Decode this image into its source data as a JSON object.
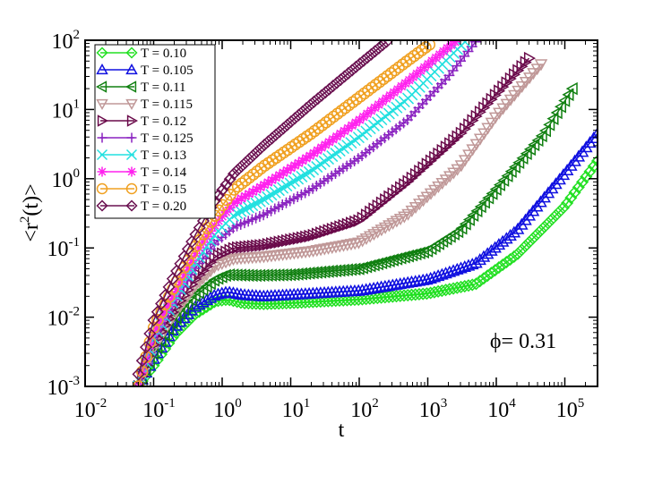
{
  "chart_data": {
    "type": "line",
    "xscale": "log",
    "yscale": "log",
    "xlim": [
      0.01,
      300000
    ],
    "ylim": [
      0.001,
      100
    ],
    "xlabel": "t",
    "ylabel": {
      "pre": "<r",
      "sup": "2",
      "post": "(t)>"
    },
    "x_ticks": [
      {
        "base": "10",
        "exp": "-2"
      },
      {
        "base": "10",
        "exp": "-1"
      },
      {
        "base": "10",
        "exp": "0"
      },
      {
        "base": "10",
        "exp": "1"
      },
      {
        "base": "10",
        "exp": "2"
      },
      {
        "base": "10",
        "exp": "3"
      },
      {
        "base": "10",
        "exp": "4"
      },
      {
        "base": "10",
        "exp": "5"
      }
    ],
    "y_ticks": [
      {
        "base": "10",
        "exp": "-3"
      },
      {
        "base": "10",
        "exp": "-2"
      },
      {
        "base": "10",
        "exp": "-1"
      },
      {
        "base": "10",
        "exp": "0"
      },
      {
        "base": "10",
        "exp": "1"
      },
      {
        "base": "10",
        "exp": "2"
      }
    ],
    "annotation": "ϕ= 0.31",
    "legend_position": "top-left",
    "series": [
      {
        "name": "T = 0.10",
        "color": "#22e022",
        "marker": "diamond",
        "t_max": 300000,
        "points": [
          [
            0.06,
            0.001
          ],
          [
            0.1,
            0.002
          ],
          [
            0.2,
            0.0055
          ],
          [
            0.4,
            0.011
          ],
          [
            0.8,
            0.017
          ],
          [
            1.2,
            0.018
          ],
          [
            2,
            0.016
          ],
          [
            4,
            0.0155
          ],
          [
            10,
            0.016
          ],
          [
            100,
            0.018
          ],
          [
            1000,
            0.022
          ],
          [
            5000,
            0.03
          ],
          [
            20000,
            0.08
          ],
          [
            100000,
            0.4
          ],
          [
            300000,
            1.8
          ]
        ]
      },
      {
        "name": "T = 0.105",
        "color": "#1010e0",
        "marker": "triangle-up",
        "t_max": 300000,
        "points": [
          [
            0.06,
            0.001
          ],
          [
            0.1,
            0.0025
          ],
          [
            0.2,
            0.007
          ],
          [
            0.4,
            0.014
          ],
          [
            0.8,
            0.021
          ],
          [
            1.2,
            0.023
          ],
          [
            2,
            0.021
          ],
          [
            4,
            0.02
          ],
          [
            10,
            0.021
          ],
          [
            100,
            0.024
          ],
          [
            1000,
            0.035
          ],
          [
            5000,
            0.06
          ],
          [
            20000,
            0.18
          ],
          [
            100000,
            1.2
          ],
          [
            300000,
            4.5
          ]
        ]
      },
      {
        "name": "T = 0.11",
        "color": "#118011",
        "marker": "triangle-left",
        "t_max": 130000,
        "points": [
          [
            0.06,
            0.001
          ],
          [
            0.1,
            0.003
          ],
          [
            0.2,
            0.009
          ],
          [
            0.4,
            0.02
          ],
          [
            0.8,
            0.035
          ],
          [
            1.2,
            0.041
          ],
          [
            3,
            0.04
          ],
          [
            10,
            0.041
          ],
          [
            100,
            0.05
          ],
          [
            1000,
            0.09
          ],
          [
            3000,
            0.18
          ],
          [
            10000,
            0.7
          ],
          [
            50000,
            4.5
          ],
          [
            130000,
            20
          ]
        ]
      },
      {
        "name": "T = 0.115",
        "color": "#c09898",
        "marker": "triangle-down",
        "t_max": 45000,
        "points": [
          [
            0.06,
            0.001
          ],
          [
            0.1,
            0.0035
          ],
          [
            0.2,
            0.011
          ],
          [
            0.4,
            0.028
          ],
          [
            0.8,
            0.055
          ],
          [
            1.5,
            0.07
          ],
          [
            4,
            0.075
          ],
          [
            20,
            0.09
          ],
          [
            100,
            0.12
          ],
          [
            500,
            0.3
          ],
          [
            3000,
            1.5
          ],
          [
            10000,
            8
          ],
          [
            45000,
            45
          ]
        ]
      },
      {
        "name": "T = 0.12",
        "color": "#6a0a4a",
        "marker": "triangle-right",
        "t_max": 30000,
        "points": [
          [
            0.06,
            0.001
          ],
          [
            0.1,
            0.004
          ],
          [
            0.2,
            0.013
          ],
          [
            0.4,
            0.035
          ],
          [
            0.8,
            0.075
          ],
          [
            1.5,
            0.1
          ],
          [
            4,
            0.11
          ],
          [
            20,
            0.15
          ],
          [
            100,
            0.25
          ],
          [
            500,
            0.9
          ],
          [
            3000,
            4.5
          ],
          [
            10000,
            17
          ],
          [
            30000,
            55
          ]
        ]
      },
      {
        "name": "T = 0.125",
        "color": "#8a22c0",
        "marker": "plus",
        "t_max": 5000,
        "points": [
          [
            0.06,
            0.001
          ],
          [
            0.1,
            0.0045
          ],
          [
            0.2,
            0.016
          ],
          [
            0.4,
            0.05
          ],
          [
            0.8,
            0.12
          ],
          [
            1.5,
            0.2
          ],
          [
            4,
            0.3
          ],
          [
            20,
            0.7
          ],
          [
            100,
            2
          ],
          [
            500,
            7
          ],
          [
            2000,
            30
          ],
          [
            5000,
            95
          ]
        ]
      },
      {
        "name": "T = 0.13",
        "color": "#22e0e0",
        "marker": "x",
        "t_max": 3500,
        "points": [
          [
            0.06,
            0.001
          ],
          [
            0.1,
            0.005
          ],
          [
            0.2,
            0.018
          ],
          [
            0.4,
            0.06
          ],
          [
            0.8,
            0.16
          ],
          [
            1.5,
            0.3
          ],
          [
            4,
            0.5
          ],
          [
            20,
            1.3
          ],
          [
            100,
            4
          ],
          [
            500,
            14
          ],
          [
            2000,
            55
          ],
          [
            3500,
            95
          ]
        ]
      },
      {
        "name": "T = 0.14",
        "color": "#ff22ee",
        "marker": "asterisk",
        "t_max": 2500,
        "points": [
          [
            0.06,
            0.001
          ],
          [
            0.1,
            0.006
          ],
          [
            0.2,
            0.022
          ],
          [
            0.4,
            0.08
          ],
          [
            0.8,
            0.22
          ],
          [
            1.5,
            0.45
          ],
          [
            4,
            0.8
          ],
          [
            20,
            2.2
          ],
          [
            100,
            7
          ],
          [
            500,
            25
          ],
          [
            2500,
            95
          ]
        ]
      },
      {
        "name": "T = 0.15",
        "color": "#f0a020",
        "marker": "circle",
        "t_max": 1200,
        "points": [
          [
            0.06,
            0.001
          ],
          [
            0.1,
            0.007
          ],
          [
            0.2,
            0.028
          ],
          [
            0.4,
            0.1
          ],
          [
            0.8,
            0.3
          ],
          [
            1.5,
            0.7
          ],
          [
            4,
            1.5
          ],
          [
            20,
            4.5
          ],
          [
            100,
            15
          ],
          [
            500,
            50
          ],
          [
            1200,
            95
          ]
        ]
      },
      {
        "name": "T = 0.20",
        "color": "#6a1050",
        "marker": "diamond",
        "t_max": 250,
        "points": [
          [
            0.06,
            0.0015
          ],
          [
            0.1,
            0.009
          ],
          [
            0.2,
            0.04
          ],
          [
            0.4,
            0.15
          ],
          [
            0.8,
            0.5
          ],
          [
            1.5,
            1.2
          ],
          [
            4,
            3
          ],
          [
            20,
            12
          ],
          [
            100,
            45
          ],
          [
            250,
            95
          ]
        ]
      }
    ]
  }
}
